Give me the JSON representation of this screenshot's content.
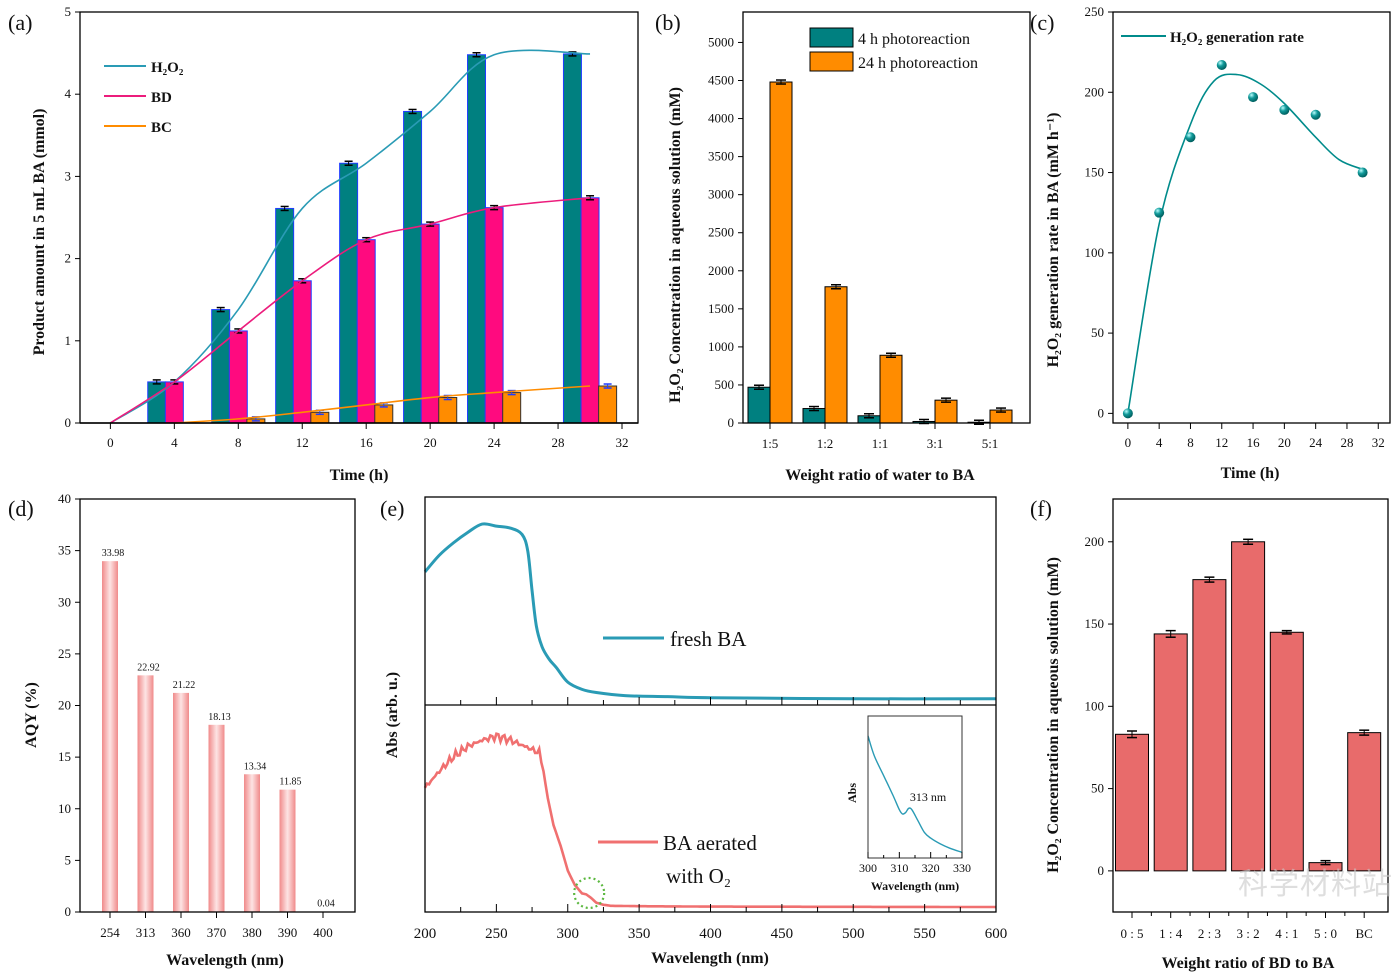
{
  "chart_data": [
    {
      "panel_label": "(a)",
      "type": "bar",
      "xlabel": "Time (h)",
      "ylabel": "Product amount in 5 mL BA  (mmol)",
      "xlim": [
        -1.9,
        33
      ],
      "ylim": [
        0,
        5
      ],
      "xticks": [
        "0",
        "4",
        "8",
        "12",
        "16",
        "20",
        "24",
        "28",
        "32"
      ],
      "yticks": [
        "0",
        "1",
        "2",
        "3",
        "4",
        "5"
      ],
      "x": [
        4,
        8,
        12,
        16,
        20,
        24,
        30
      ],
      "legend_placement": "top-left",
      "series": [
        {
          "name": "H₂O₂",
          "color": "#008080",
          "line_color": "#2a9bb5",
          "values": [
            0.5,
            1.38,
            2.61,
            3.16,
            3.79,
            4.48,
            4.49
          ]
        },
        {
          "name": "BD",
          "color": "#ff0a7f",
          "line_color": "#ec1c7c",
          "values": [
            0.5,
            1.12,
            1.73,
            2.23,
            2.42,
            2.62,
            2.74
          ]
        },
        {
          "name": "BC",
          "color": "#ff8c00",
          "line_color": "#ff8c00",
          "values": [
            0.0,
            0.05,
            0.13,
            0.22,
            0.31,
            0.37,
            0.45
          ]
        }
      ]
    },
    {
      "panel_label": "(b)",
      "type": "bar",
      "xlabel": "Weight ratio of water to BA",
      "ylabel": "H₂O₂ Concentration in aqueous solution (mM)",
      "ylim": [
        0,
        5400
      ],
      "yticks": [
        "0",
        "500",
        "1000",
        "1500",
        "2000",
        "2500",
        "3000",
        "3500",
        "4000",
        "4500",
        "5000"
      ],
      "categories": [
        "1:5",
        "1:2",
        "1:1",
        "3:1",
        "5:1"
      ],
      "legend_placement": "top-right",
      "series": [
        {
          "name": "4 h photoreaction",
          "color": "#008080",
          "values": [
            470,
            190,
            95,
            20,
            10
          ]
        },
        {
          "name": "24 h photoreaction",
          "color": "#ff8c00",
          "values": [
            4480,
            1790,
            890,
            300,
            170
          ]
        }
      ]
    },
    {
      "panel_label": "(c)",
      "type": "scatter",
      "xlabel": "Time (h)",
      "ylabel": "H₂O₂ generation rate in BA (mM h⁻¹)",
      "xlim": [
        -1.9,
        33.5
      ],
      "ylim": [
        -6,
        250
      ],
      "xticks": [
        "0",
        "4",
        "8",
        "12",
        "16",
        "20",
        "24",
        "28",
        "32"
      ],
      "yticks": [
        "0",
        "50",
        "100",
        "150",
        "200",
        "250"
      ],
      "legend_placement": "top-left",
      "series": [
        {
          "name": "H₂O₂ generation rate",
          "color": "#008b8b",
          "x": [
            0,
            4,
            8,
            12,
            16,
            20,
            24,
            30
          ],
          "values": [
            0,
            125,
            172,
            217,
            197,
            189,
            186,
            150
          ],
          "fit_x": [
            0,
            4,
            8,
            11,
            14,
            17,
            20,
            24,
            27,
            30
          ],
          "fit_y": [
            0,
            118,
            180,
            207,
            211,
            205,
            193,
            172,
            158,
            152
          ]
        }
      ]
    },
    {
      "panel_label": "(d)",
      "type": "bar",
      "xlabel": "Wavelength (nm)",
      "ylabel": "AQY (%)",
      "ylim": [
        0,
        40
      ],
      "yticks": [
        "0",
        "5",
        "10",
        "15",
        "20",
        "25",
        "30",
        "35",
        "40"
      ],
      "categories": [
        "254",
        "313",
        "360",
        "370",
        "380",
        "390",
        "400"
      ],
      "values": [
        33.98,
        22.92,
        21.22,
        18.13,
        13.34,
        11.85,
        0.04
      ],
      "data_labels": [
        "33.98",
        "22.92",
        "21.22",
        "18.13",
        "13.34",
        "11.85",
        "0.04"
      ],
      "color": "#f4a3a3"
    },
    {
      "panel_label": "(e)",
      "type": "line",
      "xlabel": "Wavelength (nm)",
      "ylabel": "Abs (arb. u.)",
      "xlim": [
        200,
        600
      ],
      "xticks": [
        "200",
        "250",
        "300",
        "350",
        "400",
        "450",
        "500",
        "550",
        "600"
      ],
      "series": [
        {
          "name": "fresh BA",
          "color": "#2a9bb5",
          "x": [
            200,
            210,
            220,
            230,
            240,
            250,
            260,
            268,
            272,
            275,
            278,
            282,
            287,
            292,
            300,
            310,
            320,
            340,
            370,
            400,
            500,
            600
          ],
          "values": [
            0.64,
            0.72,
            0.78,
            0.83,
            0.87,
            0.86,
            0.85,
            0.82,
            0.74,
            0.55,
            0.38,
            0.28,
            0.22,
            0.18,
            0.11,
            0.075,
            0.06,
            0.045,
            0.04,
            0.035,
            0.03,
            0.03
          ]
        },
        {
          "name": "BA aerated with O₂",
          "color": "#f07070",
          "x": [
            200,
            210,
            220,
            230,
            240,
            250,
            260,
            270,
            280,
            283,
            286,
            290,
            295,
            300,
            305,
            310,
            313,
            316,
            320,
            325,
            330,
            350,
            400,
            500,
            600
          ],
          "values": [
            0.6,
            0.68,
            0.75,
            0.8,
            0.83,
            0.85,
            0.83,
            0.8,
            0.77,
            0.68,
            0.55,
            0.42,
            0.32,
            0.2,
            0.13,
            0.09,
            0.085,
            0.07,
            0.045,
            0.035,
            0.03,
            0.028,
            0.026,
            0.025,
            0.024
          ]
        }
      ],
      "annotation": "313 nm",
      "inset": {
        "xlabel": "Wavelength (nm)",
        "ylabel": "Abs",
        "xlim": [
          300,
          330
        ],
        "xticks": [
          "300",
          "310",
          "320",
          "330"
        ],
        "x": [
          300,
          302,
          305,
          308,
          310,
          311,
          312,
          313,
          314,
          316,
          318,
          320,
          323,
          326,
          330
        ],
        "values": [
          0.86,
          0.72,
          0.58,
          0.44,
          0.34,
          0.31,
          0.32,
          0.35,
          0.34,
          0.26,
          0.18,
          0.14,
          0.1,
          0.07,
          0.04
        ],
        "color": "#2a9bb5"
      }
    },
    {
      "panel_label": "(f)",
      "type": "bar",
      "xlabel": "Weight ratio of BD to BA",
      "ylabel": "H₂O₂ Concentration in aqueous solution (mM)",
      "ylim": [
        -25,
        226
      ],
      "yticks": [
        "0",
        "50",
        "100",
        "150",
        "200"
      ],
      "categories": [
        "0 : 5",
        "1 : 4",
        "2 : 3",
        "3 : 2",
        "4 : 1",
        "5 : 0",
        "BC"
      ],
      "values": [
        83,
        144,
        177,
        200,
        145,
        5,
        84
      ],
      "errors": [
        2,
        2,
        1.5,
        1.5,
        1,
        1.2,
        1.5
      ],
      "color": "#e86b6b"
    }
  ],
  "watermark": "科学材料站"
}
